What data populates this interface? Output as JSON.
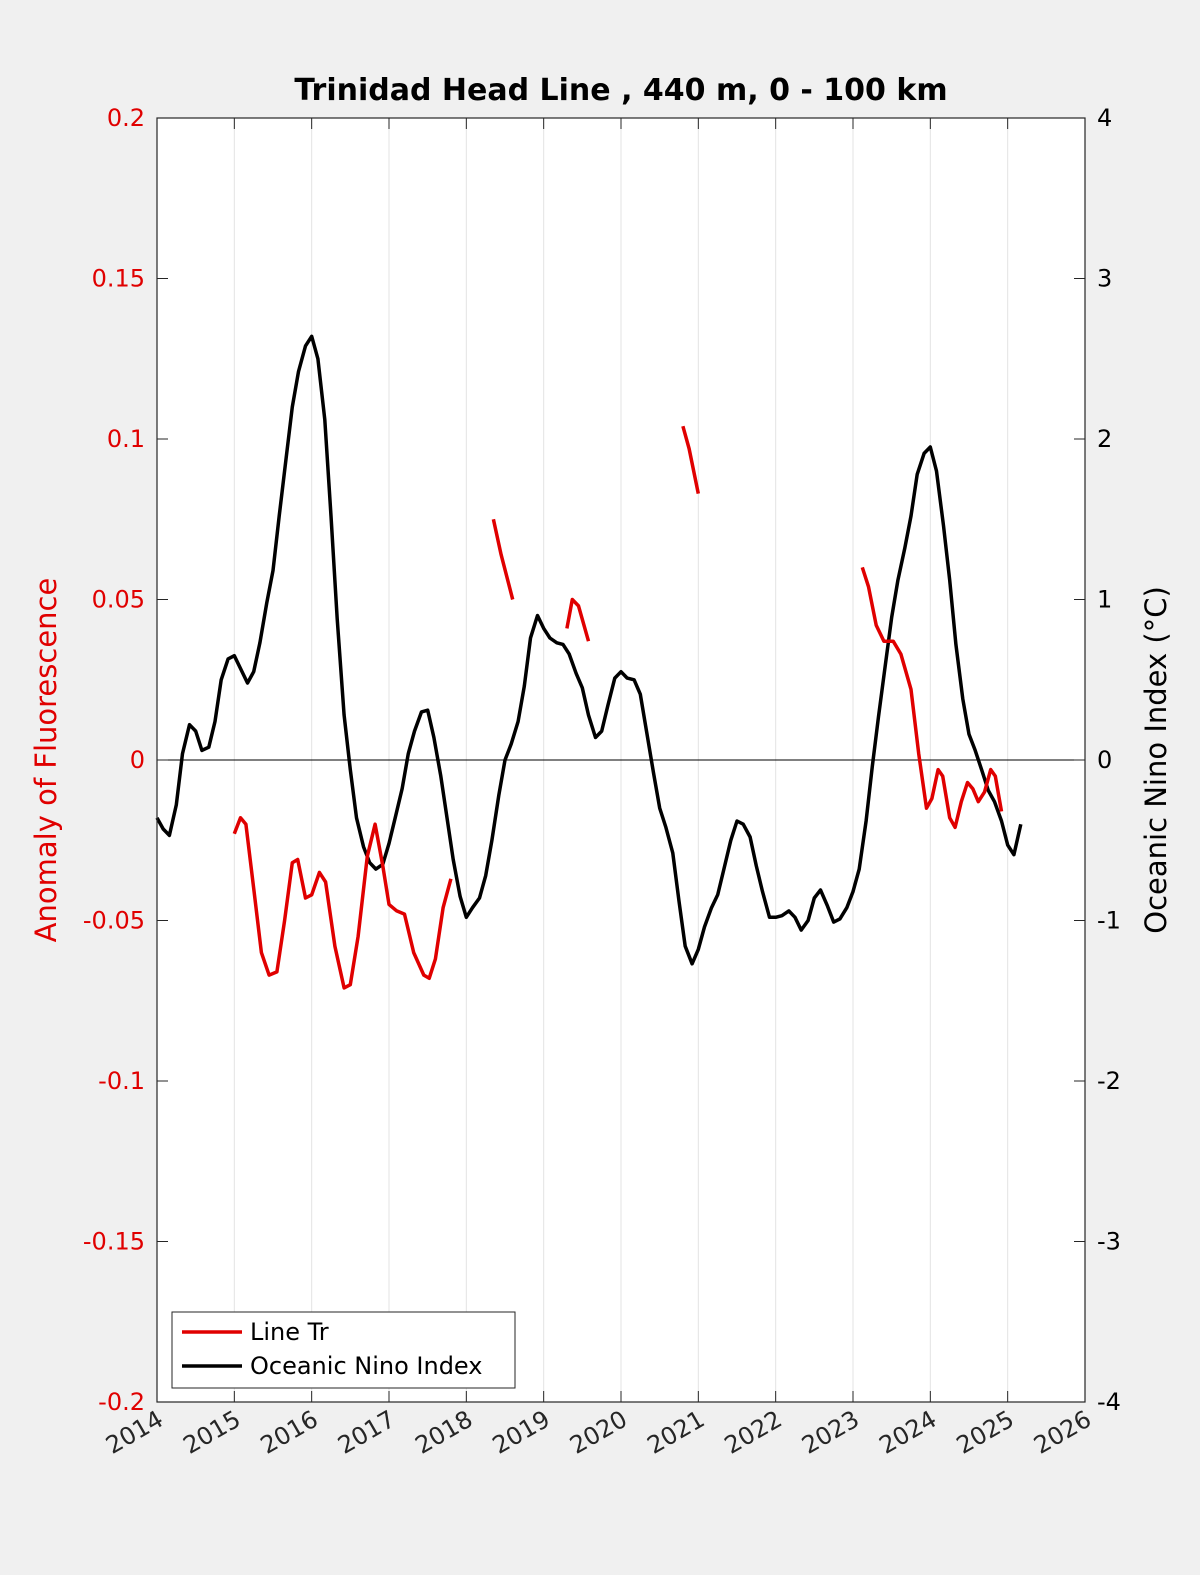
{
  "chart_data": {
    "type": "line",
    "title": "Trinidad Head Line , 440 m, 0 - 100 km",
    "ylabel_left": "Anomaly of Fluorescence",
    "ylabel_right": "Oceanic Nino Index (°C)",
    "xlabel": "",
    "xlim": [
      2014,
      2026
    ],
    "ylim_left": [
      -0.2,
      0.2
    ],
    "ylim_right": [
      -4,
      4
    ],
    "x_ticks": [
      "2014",
      "2015",
      "2016",
      "2017",
      "2018",
      "2019",
      "2020",
      "2021",
      "2022",
      "2023",
      "2024",
      "2025",
      "2026"
    ],
    "y_ticks_left": [
      "0.2",
      "0.15",
      "0.1",
      "0.05",
      "0",
      "-0.05",
      "-0.1",
      "-0.15",
      "-0.2"
    ],
    "y_ticks_right": [
      "4",
      "3",
      "2",
      "1",
      "0",
      "-1",
      "-2",
      "-3",
      "-4"
    ],
    "grid": "vertical",
    "legend_position": "bottom-left",
    "colors": {
      "line_tr": "#e00000",
      "oni": "#000000",
      "left_axis": "#e00000"
    },
    "series": [
      {
        "name": "Line Tr",
        "axis": "left",
        "segments": [
          [
            [
              2015.0,
              -0.023
            ],
            [
              2015.08,
              -0.018
            ],
            [
              2015.15,
              -0.02
            ],
            [
              2015.25,
              -0.04
            ],
            [
              2015.35,
              -0.06
            ],
            [
              2015.45,
              -0.067
            ],
            [
              2015.55,
              -0.066
            ],
            [
              2015.65,
              -0.05
            ],
            [
              2015.75,
              -0.032
            ],
            [
              2015.82,
              -0.031
            ],
            [
              2015.92,
              -0.043
            ],
            [
              2016.0,
              -0.042
            ],
            [
              2016.1,
              -0.035
            ],
            [
              2016.18,
              -0.038
            ],
            [
              2016.3,
              -0.058
            ],
            [
              2016.42,
              -0.071
            ],
            [
              2016.5,
              -0.07
            ],
            [
              2016.6,
              -0.055
            ],
            [
              2016.72,
              -0.03
            ],
            [
              2016.82,
              -0.02
            ],
            [
              2016.92,
              -0.033
            ],
            [
              2017.0,
              -0.045
            ],
            [
              2017.1,
              -0.047
            ],
            [
              2017.2,
              -0.048
            ],
            [
              2017.32,
              -0.06
            ],
            [
              2017.45,
              -0.067
            ],
            [
              2017.52,
              -0.068
            ],
            [
              2017.6,
              -0.062
            ],
            [
              2017.7,
              -0.046
            ],
            [
              2017.8,
              -0.037
            ]
          ],
          [
            [
              2018.35,
              0.075
            ],
            [
              2018.45,
              0.064
            ],
            [
              2018.6,
              0.05
            ]
          ],
          [
            [
              2019.3,
              0.041
            ],
            [
              2019.37,
              0.05
            ],
            [
              2019.45,
              0.048
            ],
            [
              2019.58,
              0.037
            ]
          ],
          [
            [
              2020.8,
              0.104
            ],
            [
              2020.88,
              0.097
            ],
            [
              2021.0,
              0.083
            ]
          ],
          [
            [
              2023.12,
              0.06
            ],
            [
              2023.2,
              0.054
            ],
            [
              2023.3,
              0.042
            ],
            [
              2023.4,
              0.037
            ],
            [
              2023.52,
              0.037
            ],
            [
              2023.62,
              0.033
            ],
            [
              2023.75,
              0.022
            ],
            [
              2023.85,
              0.002
            ],
            [
              2023.95,
              -0.015
            ],
            [
              2024.02,
              -0.012
            ],
            [
              2024.1,
              -0.003
            ],
            [
              2024.16,
              -0.005
            ],
            [
              2024.25,
              -0.018
            ],
            [
              2024.32,
              -0.021
            ],
            [
              2024.4,
              -0.013
            ],
            [
              2024.48,
              -0.007
            ],
            [
              2024.55,
              -0.009
            ],
            [
              2024.62,
              -0.013
            ],
            [
              2024.7,
              -0.01
            ],
            [
              2024.78,
              -0.003
            ],
            [
              2024.84,
              -0.005
            ],
            [
              2024.92,
              -0.016
            ]
          ]
        ]
      },
      {
        "name": "Oceanic Nino Index",
        "axis": "right",
        "segments": [
          [
            [
              2014.0,
              -0.36
            ],
            [
              2014.08,
              -0.43
            ],
            [
              2014.16,
              -0.47
            ],
            [
              2014.25,
              -0.28
            ],
            [
              2014.33,
              0.04
            ],
            [
              2014.42,
              0.22
            ],
            [
              2014.5,
              0.18
            ],
            [
              2014.58,
              0.06
            ],
            [
              2014.67,
              0.08
            ],
            [
              2014.75,
              0.24
            ],
            [
              2014.83,
              0.5
            ],
            [
              2014.92,
              0.63
            ],
            [
              2015.0,
              0.65
            ],
            [
              2015.08,
              0.57
            ],
            [
              2015.17,
              0.48
            ],
            [
              2015.25,
              0.55
            ],
            [
              2015.33,
              0.73
            ],
            [
              2015.42,
              0.98
            ],
            [
              2015.5,
              1.18
            ],
            [
              2015.58,
              1.52
            ],
            [
              2015.67,
              1.88
            ],
            [
              2015.75,
              2.2
            ],
            [
              2015.83,
              2.42
            ],
            [
              2015.92,
              2.58
            ],
            [
              2016.0,
              2.64
            ],
            [
              2016.08,
              2.5
            ],
            [
              2016.17,
              2.12
            ],
            [
              2016.25,
              1.52
            ],
            [
              2016.33,
              0.88
            ],
            [
              2016.42,
              0.28
            ],
            [
              2016.5,
              -0.06
            ],
            [
              2016.58,
              -0.36
            ],
            [
              2016.67,
              -0.54
            ],
            [
              2016.75,
              -0.64
            ],
            [
              2016.83,
              -0.68
            ],
            [
              2016.92,
              -0.65
            ],
            [
              2017.0,
              -0.52
            ],
            [
              2017.08,
              -0.36
            ],
            [
              2017.17,
              -0.18
            ],
            [
              2017.25,
              0.04
            ],
            [
              2017.33,
              0.18
            ],
            [
              2017.42,
              0.3
            ],
            [
              2017.5,
              0.31
            ],
            [
              2017.58,
              0.14
            ],
            [
              2017.67,
              -0.1
            ],
            [
              2017.75,
              -0.36
            ],
            [
              2017.83,
              -0.62
            ],
            [
              2017.92,
              -0.85
            ],
            [
              2018.0,
              -0.98
            ],
            [
              2018.08,
              -0.92
            ],
            [
              2018.17,
              -0.86
            ],
            [
              2018.25,
              -0.72
            ],
            [
              2018.33,
              -0.5
            ],
            [
              2018.42,
              -0.22
            ],
            [
              2018.5,
              0.0
            ],
            [
              2018.58,
              0.1
            ],
            [
              2018.67,
              0.24
            ],
            [
              2018.75,
              0.46
            ],
            [
              2018.83,
              0.76
            ],
            [
              2018.92,
              0.9
            ],
            [
              2019.0,
              0.82
            ],
            [
              2019.08,
              0.76
            ],
            [
              2019.17,
              0.73
            ],
            [
              2019.25,
              0.72
            ],
            [
              2019.33,
              0.66
            ],
            [
              2019.42,
              0.54
            ],
            [
              2019.5,
              0.45
            ],
            [
              2019.58,
              0.28
            ],
            [
              2019.67,
              0.14
            ],
            [
              2019.75,
              0.18
            ],
            [
              2019.83,
              0.34
            ],
            [
              2019.92,
              0.51
            ],
            [
              2020.0,
              0.55
            ],
            [
              2020.08,
              0.51
            ],
            [
              2020.17,
              0.5
            ],
            [
              2020.25,
              0.41
            ],
            [
              2020.33,
              0.18
            ],
            [
              2020.42,
              -0.08
            ],
            [
              2020.5,
              -0.3
            ],
            [
              2020.58,
              -0.42
            ],
            [
              2020.67,
              -0.58
            ],
            [
              2020.75,
              -0.88
            ],
            [
              2020.83,
              -1.16
            ],
            [
              2020.92,
              -1.27
            ],
            [
              2021.0,
              -1.18
            ],
            [
              2021.08,
              -1.04
            ],
            [
              2021.17,
              -0.92
            ],
            [
              2021.25,
              -0.84
            ],
            [
              2021.33,
              -0.68
            ],
            [
              2021.42,
              -0.5
            ],
            [
              2021.5,
              -0.38
            ],
            [
              2021.58,
              -0.4
            ],
            [
              2021.67,
              -0.48
            ],
            [
              2021.75,
              -0.66
            ],
            [
              2021.83,
              -0.82
            ],
            [
              2021.92,
              -0.98
            ],
            [
              2022.0,
              -0.98
            ],
            [
              2022.08,
              -0.97
            ],
            [
              2022.17,
              -0.94
            ],
            [
              2022.25,
              -0.98
            ],
            [
              2022.33,
              -1.06
            ],
            [
              2022.42,
              -1.0
            ],
            [
              2022.5,
              -0.86
            ],
            [
              2022.58,
              -0.81
            ],
            [
              2022.67,
              -0.91
            ],
            [
              2022.75,
              -1.01
            ],
            [
              2022.83,
              -0.99
            ],
            [
              2022.92,
              -0.92
            ],
            [
              2023.0,
              -0.82
            ],
            [
              2023.08,
              -0.68
            ],
            [
              2023.17,
              -0.38
            ],
            [
              2023.25,
              -0.04
            ],
            [
              2023.33,
              0.27
            ],
            [
              2023.42,
              0.6
            ],
            [
              2023.5,
              0.89
            ],
            [
              2023.58,
              1.12
            ],
            [
              2023.67,
              1.32
            ],
            [
              2023.75,
              1.52
            ],
            [
              2023.83,
              1.78
            ],
            [
              2023.92,
              1.91
            ],
            [
              2024.0,
              1.95
            ],
            [
              2024.08,
              1.8
            ],
            [
              2024.17,
              1.46
            ],
            [
              2024.25,
              1.12
            ],
            [
              2024.33,
              0.72
            ],
            [
              2024.42,
              0.38
            ],
            [
              2024.5,
              0.16
            ],
            [
              2024.58,
              0.06
            ],
            [
              2024.67,
              -0.07
            ],
            [
              2024.75,
              -0.19
            ],
            [
              2024.83,
              -0.26
            ],
            [
              2024.92,
              -0.38
            ],
            [
              2025.0,
              -0.53
            ],
            [
              2025.08,
              -0.59
            ],
            [
              2025.17,
              -0.4
            ]
          ]
        ]
      }
    ]
  },
  "legend": {
    "items": [
      {
        "label": "Line Tr"
      },
      {
        "label": "Oceanic Nino Index"
      }
    ]
  }
}
